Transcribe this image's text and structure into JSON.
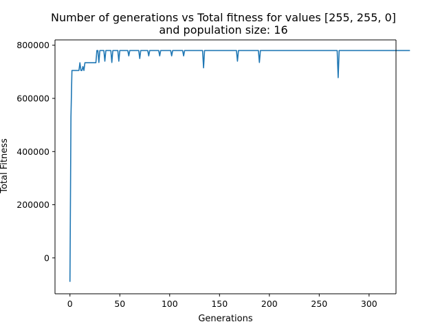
{
  "chart_data": {
    "type": "line",
    "title": "Number of generations vs Total fitness for values [255, 255, 0]",
    "subtitle": "and population size: 16",
    "xlabel": "Generations",
    "ylabel": "Total Fitness",
    "xlim": [
      -15,
      327
    ],
    "ylim": [
      -135000,
      820000
    ],
    "xticks": [
      0,
      50,
      100,
      150,
      200,
      250,
      300
    ],
    "yticks": [
      0,
      200000,
      400000,
      600000,
      800000
    ],
    "xtick_labels": [
      "0",
      "50",
      "100",
      "150",
      "200",
      "250",
      "300"
    ],
    "ytick_labels": [
      "0",
      "200000",
      "400000",
      "600000",
      "800000"
    ],
    "grid": false,
    "line_color": "#1f77b4",
    "series": [
      {
        "values": [
          -90000,
          530000,
          705000,
          705000,
          705000,
          705000,
          705000,
          705000,
          705000,
          705000,
          734000,
          705000,
          705000,
          720000,
          705000,
          734000,
          734000,
          734000,
          734000,
          734000,
          734000,
          734000,
          734000,
          734000,
          734000,
          734000,
          734000,
          780000,
          780000,
          735000,
          780000,
          780000,
          780000,
          780000,
          780000,
          740000,
          780000,
          780000,
          780000,
          780000,
          780000,
          780000,
          735000,
          780000,
          780000,
          780000,
          780000,
          780000,
          780000,
          740000,
          780000,
          780000,
          780000,
          780000,
          780000,
          780000,
          780000,
          780000,
          780000,
          760000,
          780000,
          780000,
          780000,
          780000,
          780000,
          780000,
          780000,
          780000,
          780000,
          780000,
          750000,
          780000,
          780000,
          780000,
          780000,
          780000,
          780000,
          780000,
          780000,
          760000,
          780000,
          780000,
          780000,
          780000,
          780000,
          780000,
          780000,
          780000,
          780000,
          780000,
          760000,
          780000,
          780000,
          780000,
          780000,
          780000,
          780000,
          780000,
          780000,
          780000,
          780000,
          780000,
          760000,
          780000,
          780000,
          780000,
          780000,
          780000,
          780000,
          780000,
          780000,
          780000,
          780000,
          780000,
          760000,
          780000,
          780000,
          780000,
          780000,
          780000,
          780000,
          780000,
          780000,
          780000,
          780000,
          780000,
          780000,
          780000,
          780000,
          780000,
          780000,
          780000,
          780000,
          780000,
          715000,
          780000,
          780000,
          780000,
          780000,
          780000,
          780000,
          780000,
          780000,
          780000,
          780000,
          780000,
          780000,
          780000,
          780000,
          780000,
          780000,
          780000,
          780000,
          780000,
          780000,
          780000,
          780000,
          780000,
          780000,
          780000,
          780000,
          780000,
          780000,
          780000,
          780000,
          780000,
          780000,
          780000,
          740000,
          780000,
          780000,
          780000,
          780000,
          780000,
          780000,
          780000,
          780000,
          780000,
          780000,
          780000,
          780000,
          780000,
          780000,
          780000,
          780000,
          780000,
          780000,
          780000,
          780000,
          780000,
          735000,
          780000,
          780000,
          780000,
          780000,
          780000,
          780000,
          780000,
          780000,
          780000,
          780000,
          780000,
          780000,
          780000,
          780000,
          780000,
          780000,
          780000,
          780000,
          780000,
          780000,
          780000,
          780000,
          780000,
          780000,
          780000,
          780000,
          780000,
          780000,
          780000,
          780000,
          780000,
          780000,
          780000,
          780000,
          780000,
          780000,
          780000,
          780000,
          780000,
          780000,
          780000,
          780000,
          780000,
          780000,
          780000,
          780000,
          780000,
          780000,
          780000,
          780000,
          780000,
          780000,
          780000,
          780000,
          780000,
          780000,
          780000,
          780000,
          780000,
          780000,
          780000,
          780000,
          780000,
          780000,
          780000,
          780000,
          780000,
          780000,
          780000,
          780000,
          780000,
          780000,
          780000,
          780000,
          780000,
          780000,
          780000,
          780000,
          678000,
          780000,
          780000,
          780000,
          780000,
          780000,
          780000,
          780000,
          780000,
          780000,
          780000,
          780000,
          780000,
          780000,
          780000,
          780000,
          780000,
          780000,
          780000,
          780000,
          780000,
          780000,
          780000,
          780000,
          780000,
          780000,
          780000,
          780000,
          780000,
          780000,
          780000,
          780000,
          780000,
          780000,
          780000,
          780000,
          780000,
          780000,
          780000,
          780000,
          780000,
          780000,
          780000,
          780000,
          780000,
          780000,
          780000,
          780000,
          780000,
          780000,
          780000,
          780000,
          780000,
          780000,
          780000,
          780000,
          780000,
          780000,
          780000,
          780000,
          780000,
          780000,
          780000,
          780000,
          780000,
          780000,
          780000,
          780000,
          780000,
          780000,
          780000,
          780000,
          780000
        ]
      }
    ]
  }
}
